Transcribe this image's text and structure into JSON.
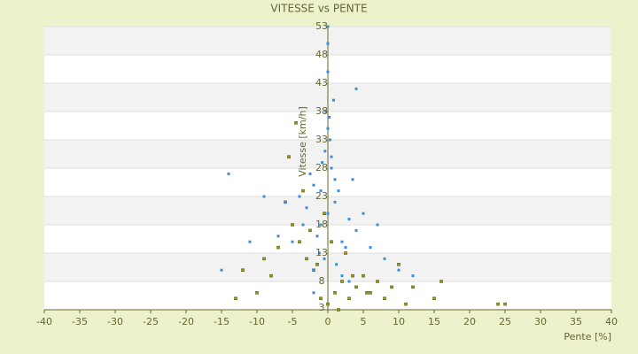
{
  "chart_data": {
    "type": "scatter",
    "title": "VITESSE vs PENTE",
    "x_label": "Pente [%]",
    "y_label": "Vitesse [km/h]",
    "xlim": [
      -40,
      40
    ],
    "xticks": [
      -40,
      -35,
      -30,
      -25,
      -20,
      -15,
      -10,
      -5,
      0,
      5,
      10,
      15,
      20,
      25,
      30,
      35,
      40
    ],
    "ylim": [
      3,
      53
    ],
    "yticks": [
      3,
      8,
      13,
      18,
      23,
      28,
      33,
      38,
      43,
      48,
      53
    ],
    "grid": true,
    "series": [
      {
        "color": "#9a9a10",
        "x": [
          0,
          1,
          -1,
          2,
          -2,
          3,
          -3,
          4,
          -4,
          5,
          -5,
          6,
          -6,
          7,
          -7,
          8,
          -8,
          9,
          -9,
          10,
          -10,
          11,
          12,
          -12,
          -13,
          15,
          16,
          24,
          25,
          0.5,
          -0.5,
          1.5,
          -1.5,
          2.5,
          -2.5,
          5.5,
          -5.5,
          -4.5,
          -3.5,
          3.5
        ],
        "values": [
          4,
          6,
          5,
          8,
          10,
          5,
          12,
          7,
          15,
          9,
          18,
          6,
          22,
          8,
          14,
          5,
          9,
          7,
          12,
          11,
          6,
          4,
          7,
          10,
          5,
          5,
          8,
          4,
          4,
          15,
          20,
          3,
          11,
          13,
          17,
          6,
          30,
          36,
          24,
          9
        ]
      },
      {
        "color": "#3a8fd8",
        "x": [
          0,
          -1,
          1,
          2,
          -2,
          0.5,
          -0.5,
          3,
          -3,
          1.5,
          -1.5,
          0,
          2.5,
          -2.5,
          4,
          -4,
          0.8,
          -0.8,
          1.2,
          -1.2,
          3.5,
          -3.5,
          5,
          -5,
          6,
          -6,
          0,
          0,
          0.3,
          -0.3,
          2,
          -2,
          7,
          -7,
          8,
          -9,
          10,
          -11,
          12,
          -14,
          -15,
          4,
          0,
          0.2,
          -0.4,
          0.5,
          1,
          -1,
          3,
          -2
        ],
        "values": [
          20,
          18,
          22,
          15,
          25,
          30,
          12,
          19,
          21,
          24,
          16,
          35,
          14,
          27,
          17,
          23,
          40,
          29,
          11,
          13,
          26,
          18,
          20,
          15,
          14,
          22,
          45,
          53,
          33,
          38,
          9,
          10,
          18,
          16,
          12,
          23,
          10,
          15,
          9,
          27,
          10,
          42,
          50,
          37,
          31,
          28,
          26,
          24,
          8,
          6
        ]
      }
    ]
  }
}
